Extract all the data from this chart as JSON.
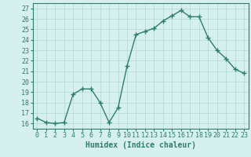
{
  "x": [
    0,
    1,
    2,
    3,
    4,
    5,
    6,
    7,
    8,
    9,
    10,
    11,
    12,
    13,
    14,
    15,
    16,
    17,
    18,
    19,
    20,
    21,
    22,
    23
  ],
  "y": [
    16.5,
    16.1,
    16.0,
    16.1,
    18.8,
    19.3,
    19.3,
    18.0,
    16.1,
    17.5,
    21.5,
    24.5,
    24.8,
    25.1,
    25.8,
    26.3,
    26.8,
    26.2,
    26.2,
    24.2,
    23.0,
    22.2,
    21.2,
    20.8
  ],
  "line_color": "#2e7d6e",
  "bg_color": "#d6f0ee",
  "grid_color": "#b0d8d0",
  "xlabel": "Humidex (Indice chaleur)",
  "xlim": [
    -0.5,
    23.5
  ],
  "ylim": [
    15.5,
    27.5
  ],
  "yticks": [
    16,
    17,
    18,
    19,
    20,
    21,
    22,
    23,
    24,
    25,
    26,
    27
  ],
  "xticks": [
    0,
    1,
    2,
    3,
    4,
    5,
    6,
    7,
    8,
    9,
    10,
    11,
    12,
    13,
    14,
    15,
    16,
    17,
    18,
    19,
    20,
    21,
    22,
    23
  ],
  "xtick_labels": [
    "0",
    "1",
    "2",
    "3",
    "4",
    "5",
    "6",
    "7",
    "8",
    "9",
    "10",
    "11",
    "12",
    "13",
    "14",
    "15",
    "16",
    "17",
    "18",
    "19",
    "20",
    "21",
    "22",
    "23"
  ],
  "marker": "+",
  "marker_size": 4,
  "line_width": 1.0,
  "label_fontsize": 7,
  "tick_fontsize": 6
}
